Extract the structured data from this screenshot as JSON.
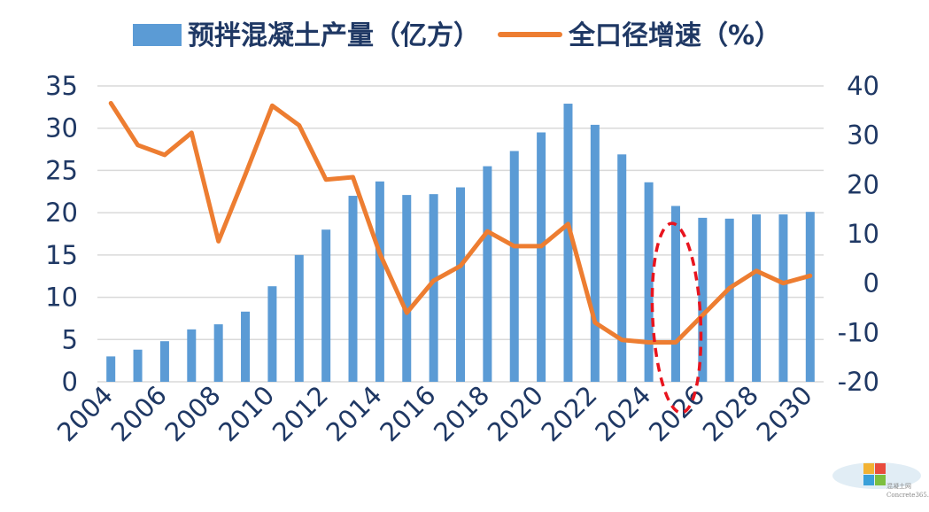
{
  "chart_data": {
    "type": "bar+line",
    "categories": [
      "2004",
      "2005",
      "2006",
      "2007",
      "2008",
      "2009",
      "2010",
      "2011",
      "2012",
      "2013",
      "2014",
      "2015",
      "2016",
      "2017",
      "2018",
      "2019",
      "2020",
      "2021",
      "2022",
      "2023",
      "2024",
      "2025",
      "2026",
      "2027",
      "2028",
      "2029",
      "2030"
    ],
    "x_tick_labels": [
      "2004",
      "2006",
      "2008",
      "2010",
      "2012",
      "2014",
      "2016",
      "2018",
      "2020",
      "2022",
      "2024",
      "2026",
      "2028",
      "2030"
    ],
    "series": [
      {
        "name": "预拌混凝土产量（亿方）",
        "type": "bar",
        "axis": "left",
        "color": "#5b9bd5",
        "values": [
          3.0,
          3.8,
          4.8,
          6.2,
          6.8,
          8.3,
          11.3,
          15.0,
          18.0,
          22.0,
          23.7,
          22.1,
          22.2,
          23.0,
          25.5,
          27.3,
          29.5,
          32.9,
          30.4,
          26.9,
          23.6,
          20.8,
          19.4,
          19.3,
          19.8,
          19.8,
          20.1
        ]
      },
      {
        "name": "全口径增速（%）",
        "type": "line",
        "axis": "right",
        "color": "#ed7d31",
        "values": [
          36.5,
          28.0,
          26.0,
          30.5,
          8.5,
          22.0,
          36.0,
          32.0,
          21.0,
          21.5,
          6.0,
          -6.0,
          0.5,
          3.5,
          10.5,
          7.5,
          7.5,
          12.0,
          -8.0,
          -11.5,
          -12.0,
          -12.0,
          -6.5,
          -1.0,
          2.5,
          0.0,
          1.5
        ]
      }
    ],
    "y_left": {
      "ylim": [
        0,
        35
      ],
      "ticks": [
        "0",
        "5",
        "10",
        "15",
        "20",
        "25",
        "30",
        "35"
      ]
    },
    "y_right": {
      "ylim": [
        -20,
        40
      ],
      "ticks": [
        "-20",
        "-10",
        "0",
        "10",
        "20",
        "30",
        "40"
      ]
    },
    "grid": true,
    "legend": "top-center",
    "highlight": {
      "category": "2025",
      "style": "red-dashed-ellipse"
    }
  },
  "watermark": {
    "text": "混凝土网",
    "subtext": "Concrete365.com"
  }
}
